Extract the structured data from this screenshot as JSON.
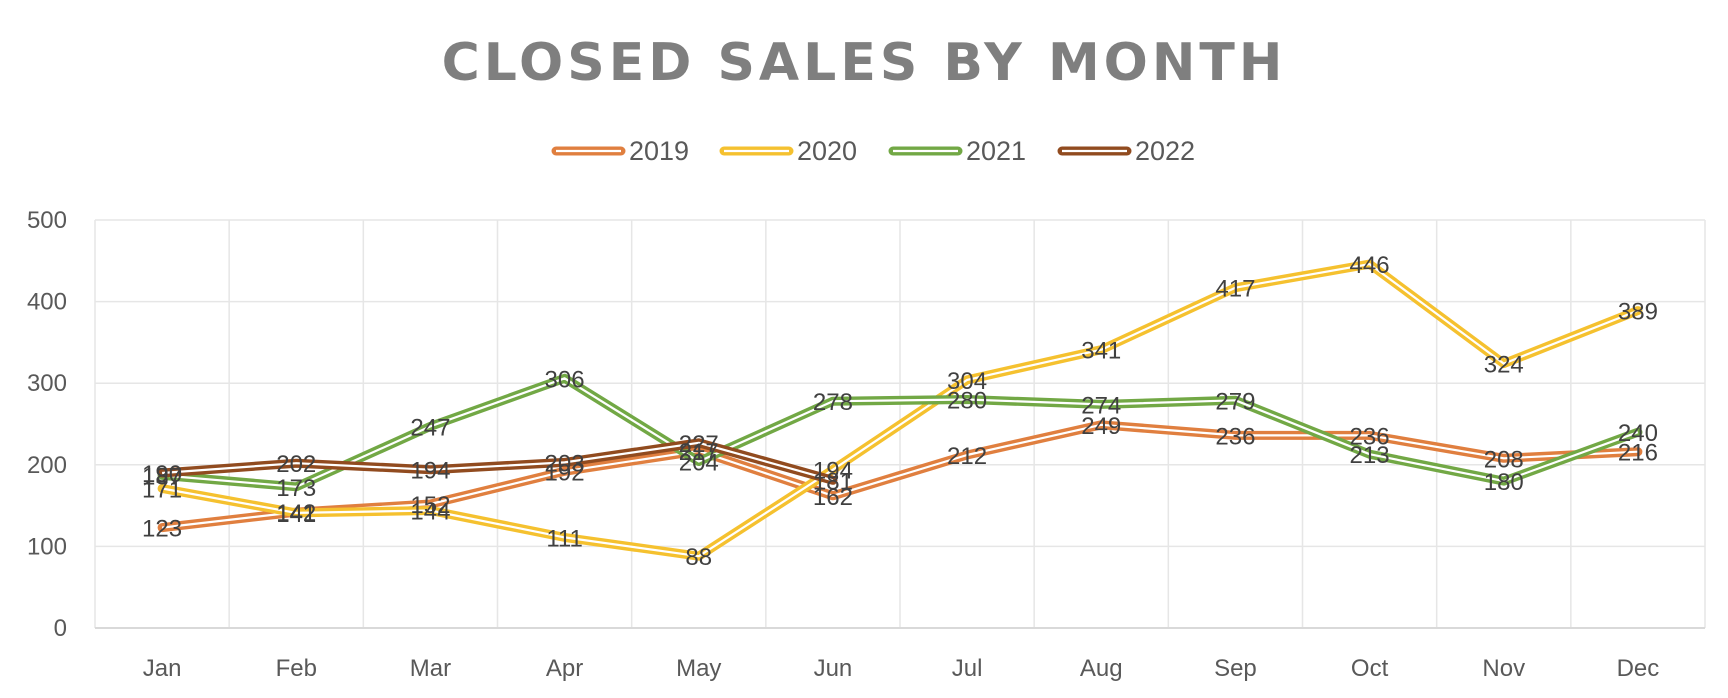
{
  "chart_data": {
    "type": "line",
    "title": "CLOSED SALES BY MONTH",
    "xlabel": "",
    "ylabel": "",
    "categories": [
      "Jan",
      "Feb",
      "Mar",
      "Apr",
      "May",
      "Jun",
      "Jul",
      "Aug",
      "Sep",
      "Oct",
      "Nov",
      "Dec"
    ],
    "ylim": [
      0,
      500
    ],
    "yticks": [
      0,
      100,
      200,
      300,
      400,
      500
    ],
    "grid": true,
    "legend_position": "top",
    "line_style": "double",
    "series": [
      {
        "name": "2019",
        "color": "#e07f3f",
        "values": [
          123,
          142,
          152,
          192,
          217,
          162,
          212,
          249,
          236,
          236,
          208,
          216
        ]
      },
      {
        "name": "2020",
        "color": "#f5c12f",
        "values": [
          171,
          141,
          144,
          111,
          88,
          194,
          304,
          341,
          417,
          446,
          324,
          389
        ]
      },
      {
        "name": "2021",
        "color": "#72a845",
        "values": [
          187,
          173,
          247,
          306,
          204,
          278,
          280,
          274,
          279,
          213,
          180,
          240
        ]
      },
      {
        "name": "2022",
        "color": "#914b1f",
        "values": [
          190,
          202,
          194,
          203,
          227,
          181,
          null,
          null,
          null,
          null,
          null,
          null
        ]
      }
    ]
  }
}
